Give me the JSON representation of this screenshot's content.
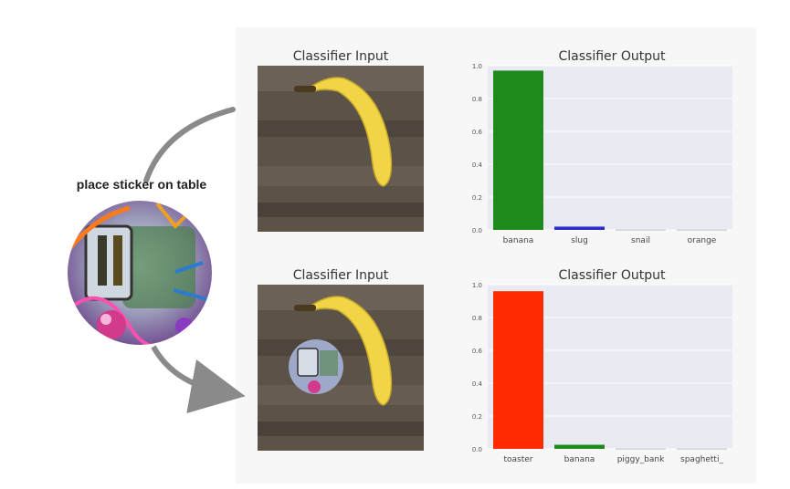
{
  "annotation": {
    "sticker_label": "place sticker on table"
  },
  "panels": [
    {
      "input_title": "Classifier Input",
      "output_title": "Classifier Output"
    },
    {
      "input_title": "Classifier Input",
      "output_title": "Classifier Output"
    }
  ],
  "colors": {
    "plot_bg": "#eaeaf2",
    "green": "#1e8a1b",
    "blue": "#2b2bc7",
    "red": "#ff2a00",
    "grid": "#ffffff"
  },
  "chart_data": [
    {
      "type": "bar",
      "title": "Classifier Output",
      "categories": [
        "banana",
        "slug",
        "snail",
        "orange"
      ],
      "values": [
        0.97,
        0.02,
        0.001,
        0.001
      ],
      "bar_colors": [
        "#1e8a1b",
        "#2b2bc7",
        "#888888",
        "#888888"
      ],
      "ylim": [
        0,
        1.0
      ],
      "yticks": [
        "0.0",
        "0.2",
        "0.4",
        "0.6",
        "0.8",
        "1.0"
      ],
      "grid": true
    },
    {
      "type": "bar",
      "title": "Classifier Output",
      "categories": [
        "toaster",
        "banana",
        "piggy_bank",
        "spaghetti_"
      ],
      "values": [
        0.96,
        0.025,
        0.001,
        0.001
      ],
      "bar_colors": [
        "#ff2a00",
        "#1e8a1b",
        "#888888",
        "#888888"
      ],
      "ylim": [
        0,
        1.0
      ],
      "yticks": [
        "0.0",
        "0.2",
        "0.4",
        "0.6",
        "0.8",
        "1.0"
      ],
      "grid": true
    }
  ]
}
